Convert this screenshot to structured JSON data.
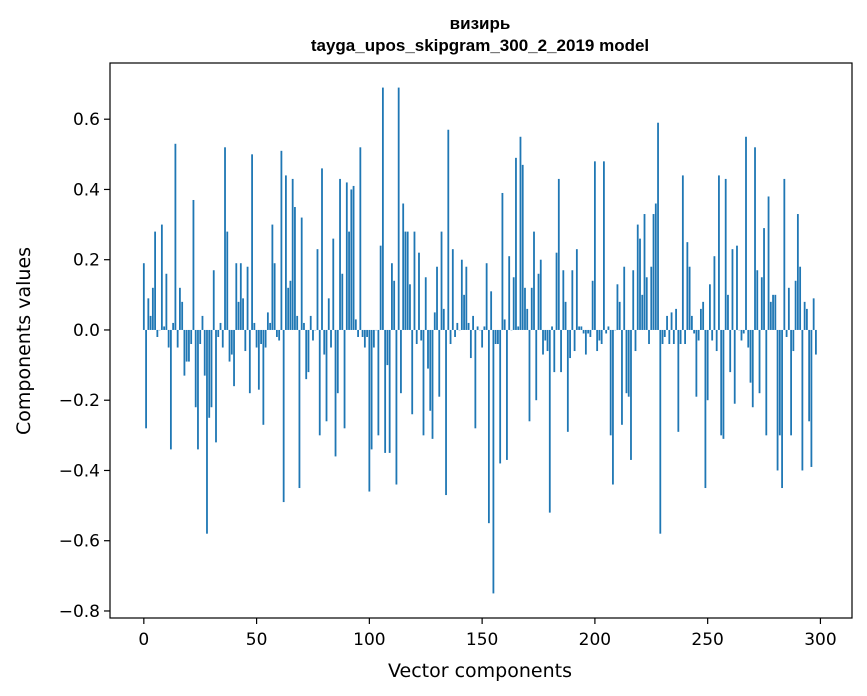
{
  "chart_data": {
    "type": "bar",
    "title": "визирь",
    "subtitle": "tayga_upos_skipgram_300_2_2019 model",
    "xlabel": "Vector components",
    "ylabel": "Components values",
    "xlim": [
      -15,
      314
    ],
    "ylim": [
      -0.82,
      0.76
    ],
    "xticks": [
      0,
      50,
      100,
      150,
      200,
      250,
      300
    ],
    "xtick_labels": [
      "0",
      "50",
      "100",
      "150",
      "200",
      "250",
      "300"
    ],
    "yticks": [
      -0.8,
      -0.6,
      -0.4,
      -0.2,
      0.0,
      0.2,
      0.4,
      0.6
    ],
    "ytick_labels": [
      "−0.8",
      "−0.6",
      "−0.4",
      "−0.2",
      "0.0",
      "0.2",
      "0.4",
      "0.6"
    ],
    "grid": false,
    "bar_color": "#1f77b4",
    "series": [
      {
        "values": [
          0.19,
          -0.28,
          0.09,
          0.04,
          0.12,
          0.28,
          -0.02,
          0.0,
          0.3,
          0.01,
          0.16,
          -0.05,
          -0.34,
          0.02,
          0.53,
          -0.05,
          0.12,
          0.08,
          -0.13,
          -0.09,
          -0.09,
          -0.04,
          0.37,
          -0.22,
          -0.34,
          -0.04,
          0.04,
          -0.13,
          -0.58,
          -0.25,
          -0.22,
          0.17,
          -0.32,
          -0.02,
          0.02,
          -0.05,
          0.52,
          0.28,
          -0.09,
          -0.07,
          -0.16,
          0.19,
          0.08,
          0.19,
          0.09,
          -0.06,
          0.18,
          -0.18,
          0.5,
          0.02,
          -0.05,
          -0.17,
          -0.04,
          -0.27,
          -0.05,
          0.05,
          0.02,
          0.3,
          0.19,
          -0.02,
          -0.03,
          0.51,
          -0.49,
          0.44,
          0.12,
          0.14,
          0.43,
          0.35,
          0.04,
          -0.45,
          0.32,
          0.02,
          -0.14,
          -0.12,
          0.04,
          -0.03,
          0.0,
          0.23,
          -0.3,
          0.46,
          -0.07,
          -0.26,
          0.09,
          -0.05,
          0.26,
          -0.36,
          -0.18,
          0.43,
          0.16,
          -0.28,
          0.42,
          0.28,
          0.4,
          0.41,
          0.03,
          -0.02,
          0.52,
          -0.02,
          -0.05,
          -0.02,
          -0.46,
          -0.34,
          -0.05,
          0.0,
          -0.3,
          0.24,
          0.69,
          -0.35,
          -0.1,
          -0.35,
          0.19,
          0.14,
          -0.44,
          0.69,
          -0.18,
          0.36,
          0.28,
          0.28,
          0.13,
          -0.24,
          0.28,
          -0.04,
          0.22,
          -0.03,
          -0.3,
          0.15,
          -0.11,
          -0.23,
          -0.31,
          0.05,
          0.18,
          -0.19,
          0.28,
          0.06,
          -0.47,
          0.57,
          -0.04,
          0.23,
          -0.02,
          0.02,
          0.0,
          0.2,
          0.1,
          0.18,
          0.02,
          -0.08,
          0.04,
          -0.28,
          0.01,
          0.0,
          -0.05,
          0.01,
          0.19,
          -0.55,
          0.11,
          -0.75,
          -0.04,
          -0.04,
          -0.38,
          0.39,
          0.03,
          -0.37,
          0.21,
          0.0,
          0.15,
          0.49,
          0.01,
          0.55,
          0.47,
          0.12,
          0.06,
          -0.26,
          0.12,
          0.28,
          -0.2,
          0.16,
          0.2,
          -0.07,
          -0.03,
          -0.06,
          -0.52,
          0.01,
          -0.12,
          0.22,
          0.43,
          -0.12,
          0.17,
          0.08,
          -0.29,
          -0.08,
          0.17,
          -0.06,
          0.23,
          0.01,
          0.01,
          -0.01,
          -0.07,
          -0.01,
          -0.02,
          0.14,
          0.48,
          -0.06,
          -0.03,
          -0.04,
          0.48,
          -0.01,
          0.01,
          -0.3,
          -0.44,
          0.0,
          0.13,
          0.08,
          -0.27,
          0.18,
          -0.18,
          -0.19,
          -0.37,
          0.17,
          -0.06,
          0.3,
          0.26,
          0.1,
          0.33,
          0.15,
          -0.04,
          0.18,
          0.33,
          0.36,
          0.59,
          -0.58,
          -0.04,
          -0.02,
          0.04,
          -0.04,
          0.05,
          -0.04,
          0.06,
          -0.29,
          -0.04,
          0.44,
          -0.04,
          0.25,
          0.18,
          0.04,
          -0.01,
          -0.19,
          -0.03,
          0.06,
          0.08,
          -0.45,
          -0.2,
          0.13,
          -0.03,
          0.21,
          -0.06,
          0.44,
          -0.3,
          -0.31,
          0.43,
          0.1,
          -0.12,
          0.23,
          -0.21,
          0.24,
          0.0,
          -0.03,
          -0.01,
          0.55,
          -0.05,
          -0.15,
          -0.22,
          0.52,
          0.17,
          -0.18,
          0.15,
          0.29,
          -0.3,
          0.38,
          0.08,
          0.1,
          0.1,
          -0.4,
          -0.3,
          -0.45,
          0.43,
          -0.02,
          0.12,
          -0.3,
          -0.06,
          0.14,
          0.33,
          0.18,
          -0.4,
          0.08,
          0.06,
          -0.26,
          -0.39,
          0.09,
          -0.07
        ]
      }
    ]
  }
}
